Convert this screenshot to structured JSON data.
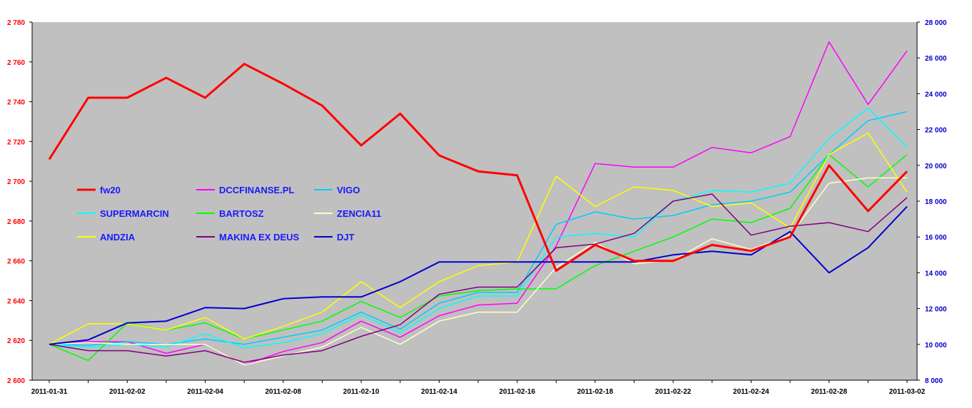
{
  "chart_data": {
    "type": "line",
    "background": "#c0c0c0",
    "x": [
      "2011-01-31",
      "2011-02-01",
      "2011-02-02",
      "2011-02-03",
      "2011-02-04",
      "2011-02-07",
      "2011-02-08",
      "2011-02-09",
      "2011-02-10",
      "2011-02-11",
      "2011-02-14",
      "2011-02-15",
      "2011-02-16",
      "2011-02-17",
      "2011-02-18",
      "2011-02-21",
      "2011-02-22",
      "2011-02-23",
      "2011-02-24",
      "2011-02-25",
      "2011-02-28",
      "2011-03-01",
      "2011-03-02"
    ],
    "x_tick_labels": [
      "2011-01-31",
      "2011-02-02",
      "2011-02-04",
      "2011-02-08",
      "2011-02-10",
      "2011-02-14",
      "2011-02-16",
      "2011-02-18",
      "2011-02-22",
      "2011-02-24",
      "2011-02-28",
      "2011-03-02"
    ],
    "y_left": {
      "ylim": [
        2600,
        2780
      ],
      "ticks": [
        2600,
        2620,
        2640,
        2660,
        2680,
        2700,
        2720,
        2740,
        2760,
        2780
      ],
      "tick_labels": [
        "2 600",
        "2 620",
        "2 640",
        "2 660",
        "2 680",
        "2 700",
        "2 720",
        "2 740",
        "2 760",
        "2 780"
      ],
      "color": "#ff0000"
    },
    "y_right": {
      "ylim": [
        8000,
        28000
      ],
      "ticks": [
        8000,
        10000,
        12000,
        14000,
        16000,
        18000,
        20000,
        22000,
        24000,
        26000,
        28000
      ],
      "tick_labels": [
        "8 000",
        "10 000",
        "12 000",
        "14 000",
        "16 000",
        "18 000",
        "20 000",
        "22 000",
        "24 000",
        "26 000",
        "28 000"
      ],
      "color": "#0000cc"
    },
    "grid": false,
    "legend_placement": "left",
    "series": [
      {
        "name": "fw20",
        "color": "#ff0000",
        "width": 3,
        "axis": "left",
        "values": [
          2711,
          2742,
          2742,
          2752,
          2742,
          2759,
          2749,
          2738,
          2718,
          2734,
          2713,
          2705,
          2703,
          2655,
          2668,
          2660,
          2660,
          2668,
          2665,
          2672,
          2708,
          2685,
          2705
        ]
      },
      {
        "name": "DCCFINANSE.PL",
        "color": "#ff00ff",
        "width": 1.5,
        "axis": "right",
        "values": [
          10000,
          10150,
          10150,
          9500,
          10000,
          8850,
          9600,
          10100,
          11300,
          10400,
          11600,
          12200,
          12300,
          15500,
          20100,
          19900,
          19900,
          21000,
          20700,
          21600,
          26900,
          23400,
          26400
        ]
      },
      {
        "name": "VIGO",
        "color": "#00ccff",
        "width": 1.5,
        "axis": "right",
        "values": [
          10000,
          9950,
          10150,
          10000,
          10300,
          10000,
          10400,
          10800,
          11800,
          10850,
          12300,
          12900,
          12900,
          16700,
          17400,
          17000,
          17200,
          17800,
          18000,
          18500,
          20600,
          22500,
          23000
        ]
      },
      {
        "name": "SUPERMARCIN",
        "color": "#00ffff",
        "width": 1.5,
        "axis": "right",
        "values": [
          10000,
          9850,
          10000,
          9850,
          10600,
          9800,
          10100,
          10600,
          11650,
          10650,
          12000,
          12700,
          12700,
          16000,
          16200,
          16000,
          18000,
          18600,
          18500,
          19000,
          21500,
          23200,
          21000
        ]
      },
      {
        "name": "BARTOSZ",
        "color": "#00ff00",
        "width": 1.5,
        "axis": "right",
        "values": [
          10000,
          9100,
          11200,
          10800,
          11200,
          10300,
          10800,
          11300,
          12400,
          11500,
          12700,
          13000,
          13100,
          13100,
          14400,
          15200,
          16000,
          17000,
          16800,
          17600,
          20600,
          18800,
          20600
        ]
      },
      {
        "name": "ZENCIA11",
        "color": "#ffffcc",
        "width": 1.5,
        "axis": "right",
        "values": [
          10000,
          10100,
          10000,
          10000,
          10000,
          8850,
          9350,
          9850,
          10950,
          10000,
          11300,
          11800,
          11800,
          14300,
          15700,
          14500,
          14700,
          15900,
          15300,
          16100,
          19000,
          19300,
          19300
        ]
      },
      {
        "name": "ANDZIA",
        "color": "#ffff00",
        "width": 1.5,
        "axis": "right",
        "values": [
          10000,
          11150,
          11150,
          10800,
          11500,
          10300,
          11000,
          11800,
          13500,
          12050,
          13500,
          14400,
          14600,
          19400,
          17700,
          18800,
          18600,
          17700,
          17900,
          16500,
          20600,
          21800,
          18500
        ]
      },
      {
        "name": "MAKINA EX DEUS",
        "color": "#800080",
        "width": 1.5,
        "axis": "right",
        "values": [
          10000,
          9650,
          9650,
          9350,
          9650,
          9000,
          9400,
          9650,
          10450,
          11100,
          12800,
          13200,
          13200,
          15400,
          15600,
          16200,
          18000,
          18400,
          16100,
          16600,
          16800,
          16300,
          18200
        ]
      },
      {
        "name": "DJT",
        "color": "#0000cc",
        "width": 2,
        "axis": "right",
        "values": [
          10000,
          10250,
          11200,
          11300,
          12050,
          12000,
          12550,
          12650,
          12650,
          13500,
          14600,
          14600,
          14600,
          14600,
          14600,
          14600,
          15000,
          15200,
          15000,
          16300,
          14000,
          15400,
          17700
        ]
      }
    ]
  }
}
